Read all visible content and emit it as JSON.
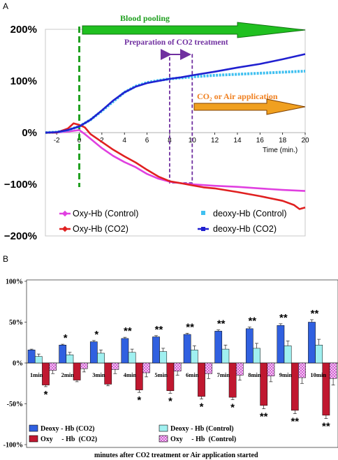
{
  "chart_data": [
    {
      "id": "A",
      "type": "line",
      "panel_label": "A",
      "xlabel": "Time (min.)",
      "xlim": [
        -3,
        20
      ],
      "ylim": [
        -200,
        200
      ],
      "x_ticks": [
        "-2",
        "0",
        "2",
        "4",
        "6",
        "8",
        "10",
        "12",
        "14",
        "16",
        "18",
        "20"
      ],
      "x_tick_values": [
        -2,
        0,
        2,
        4,
        6,
        8,
        10,
        12,
        14,
        16,
        18,
        20
      ],
      "y_ticks": [
        "200%",
        "100%",
        "0%",
        "−100%",
        "−200%"
      ],
      "y_tick_values": [
        200,
        100,
        0,
        -100,
        -200
      ],
      "vertical_marker_x": 0,
      "bracket_x": [
        8,
        10
      ],
      "annotations": {
        "blood_pooling": "Blood pooling",
        "prep": "Preparation of CO2 treatment",
        "co2_air": "CO₂ or Air application"
      },
      "series": [
        {
          "name": "Oxy-Hb (Control)",
          "color": "#e040e0",
          "x": [
            -3,
            -2,
            -1,
            0,
            0.5,
            1,
            2,
            3,
            4,
            5,
            6,
            7,
            8,
            9,
            10,
            12,
            14,
            16,
            18,
            20
          ],
          "y": [
            0,
            0,
            2,
            5,
            -3,
            -12,
            -30,
            -45,
            -57,
            -67,
            -80,
            -89,
            -95,
            -98,
            -100,
            -103,
            -105,
            -108,
            -111,
            -113
          ]
        },
        {
          "name": "deoxy-Hb (Control)",
          "color": "#40c0f0",
          "x": [
            -3,
            -2,
            -1,
            0,
            1,
            2,
            3,
            4,
            5,
            6,
            7,
            8,
            9,
            10,
            12,
            14,
            16,
            18,
            20
          ],
          "y": [
            0,
            1,
            5,
            12,
            25,
            42,
            60,
            78,
            90,
            97,
            101,
            104,
            106,
            108,
            111,
            113,
            115,
            117,
            119
          ]
        },
        {
          "name": "Oxy-Hb (CO2)",
          "color": "#e02020",
          "x": [
            -3,
            -2,
            -1,
            -0.5,
            0,
            0.5,
            1,
            2,
            3,
            4,
            5,
            6,
            7,
            8,
            9,
            10,
            11,
            12,
            14,
            16,
            18,
            19,
            19.5,
            20
          ],
          "y": [
            0,
            0,
            8,
            18,
            15,
            10,
            -3,
            -18,
            -33,
            -46,
            -58,
            -72,
            -85,
            -94,
            -98,
            -102,
            -106,
            -108,
            -115,
            -123,
            -132,
            -140,
            -148,
            -145
          ]
        },
        {
          "name": "deoxy-Hb (CO2)",
          "color": "#2020d0",
          "x": [
            -3,
            -2,
            -1,
            0,
            1,
            2,
            3,
            4,
            5,
            6,
            7,
            8,
            9,
            10,
            12,
            14,
            16,
            18,
            20
          ],
          "y": [
            0,
            1,
            5,
            12,
            25,
            43,
            62,
            78,
            89,
            96,
            100,
            104,
            107,
            111,
            118,
            126,
            133,
            142,
            152
          ]
        }
      ],
      "legend": [
        "Oxy-Hb (Control)",
        "deoxy-Hb (Control)",
        "Oxy-Hb (CO2)",
        "deoxy-Hb (CO2)"
      ]
    },
    {
      "id": "B",
      "type": "bar",
      "panel_label": "B",
      "xlabel": "minutes after CO2 treatment or Air application started",
      "ylim": [
        -100,
        100
      ],
      "y_ticks": [
        "100%",
        "50%",
        "0%",
        "-50%",
        "-100%"
      ],
      "y_tick_values": [
        100,
        50,
        0,
        -50,
        -100
      ],
      "categories": [
        "1min",
        "2min",
        "3min",
        "4min",
        "5min",
        "6min",
        "7min",
        "8min",
        "9min",
        "10min"
      ],
      "series": [
        {
          "name": "Deoxy - Hb  (CO2)",
          "color": "#3060e0",
          "pattern": "solid",
          "values": [
            16,
            22,
            26,
            30,
            32,
            35,
            39,
            42,
            46,
            50
          ],
          "err": [
            1,
            1,
            1.5,
            1.5,
            1.5,
            1.5,
            1.5,
            2,
            2,
            3
          ]
        },
        {
          "name": "Deoxy  - Hb  (Control)",
          "color": "#a0f0f0",
          "pattern": "solid",
          "values": [
            8,
            10,
            12,
            13,
            14,
            16,
            17,
            18,
            21,
            22
          ],
          "err": [
            3,
            3,
            4,
            4,
            4,
            5,
            5,
            6,
            6,
            7
          ]
        },
        {
          "name": "Oxy     - Hb  (CO2)",
          "color": "#c01830",
          "pattern": "solid",
          "values": [
            -27,
            -21,
            -26,
            -33,
            -34,
            -41,
            -42,
            -52,
            -58,
            -64
          ],
          "err": [
            2,
            2,
            2,
            3,
            3,
            3,
            3,
            4,
            4,
            4
          ]
        },
        {
          "name": "Oxy     - Hb  (Control)",
          "color": "#e090e0",
          "pattern": "checker",
          "values": [
            -9,
            -7,
            -8,
            -12,
            -10,
            -13,
            -15,
            -16,
            -18,
            -19
          ],
          "err": [
            4,
            4,
            5,
            5,
            5,
            6,
            6,
            7,
            7,
            8
          ]
        }
      ],
      "stars_above": [
        "",
        "*",
        "*",
        "**",
        "**",
        "**",
        "**",
        "**",
        "**",
        "**"
      ],
      "stars_below": [
        "*",
        "",
        "",
        "*",
        "*",
        "*",
        "*",
        "**",
        "**",
        "**"
      ]
    }
  ]
}
